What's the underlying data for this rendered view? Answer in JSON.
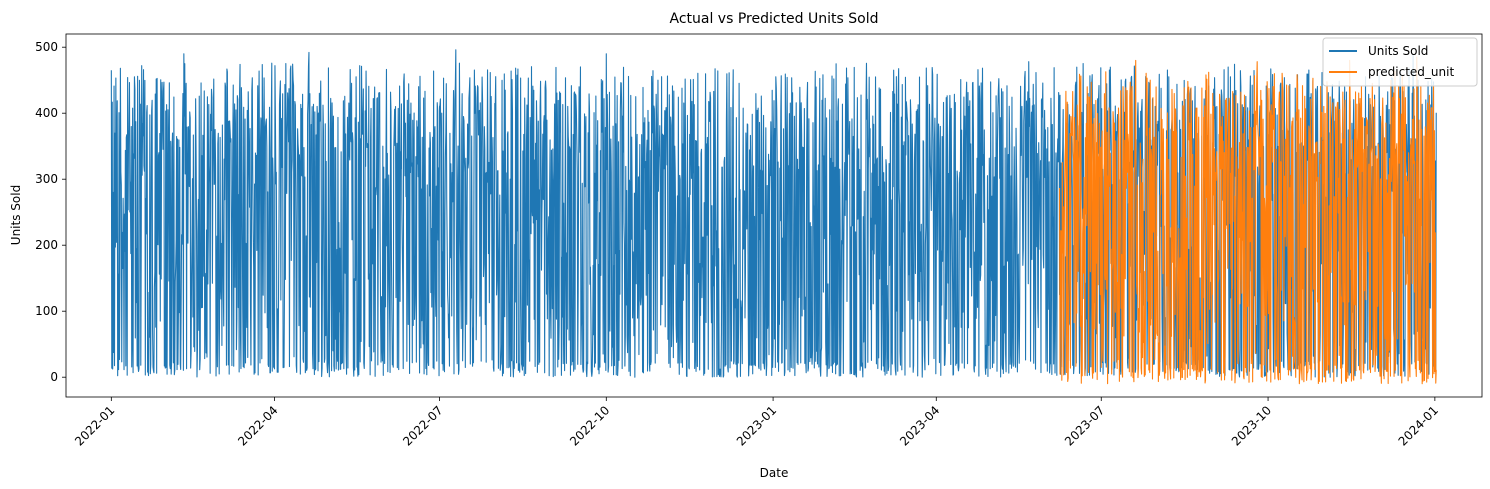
{
  "chart_data": {
    "type": "line",
    "title": "Actual vs Predicted Units Sold",
    "xlabel": "Date",
    "ylabel": "Units Sold",
    "xlim": [
      "2021-12-07",
      "2024-01-27"
    ],
    "ylim": [
      -30,
      520
    ],
    "x_ticks": [
      "2022-01",
      "2022-04",
      "2022-07",
      "2022-10",
      "2023-01",
      "2023-04",
      "2023-07",
      "2023-10",
      "2024-01"
    ],
    "y_ticks": [
      0,
      100,
      200,
      300,
      400,
      500
    ],
    "grid": false,
    "legend_position": "top-right",
    "series": [
      {
        "name": "Units Sold",
        "color": "#1f77b4",
        "x_start": "2022-01-01",
        "x_end": "2024-01-01",
        "frequency": "daily",
        "value_range": [
          0,
          496
        ],
        "peaks": [
          {
            "date": "2022-01-01",
            "value": 465
          },
          {
            "date": "2022-02-10",
            "value": 490
          },
          {
            "date": "2022-04-20",
            "value": 492
          },
          {
            "date": "2022-07-10",
            "value": 496
          },
          {
            "date": "2022-10-01",
            "value": 490
          },
          {
            "date": "2023-05-22",
            "value": 478
          },
          {
            "date": "2023-12-20",
            "value": 488
          }
        ]
      },
      {
        "name": "predicted_unit",
        "color": "#ff7f0e",
        "x_start": "2023-06-08",
        "x_end": "2024-01-01",
        "frequency": "daily",
        "value_range": [
          -10,
          485
        ],
        "peaks": [
          {
            "date": "2023-07-20",
            "value": 480
          },
          {
            "date": "2023-09-25",
            "value": 478
          },
          {
            "date": "2023-11-15",
            "value": 480
          },
          {
            "date": "2023-12-22",
            "value": 485
          }
        ]
      }
    ]
  }
}
